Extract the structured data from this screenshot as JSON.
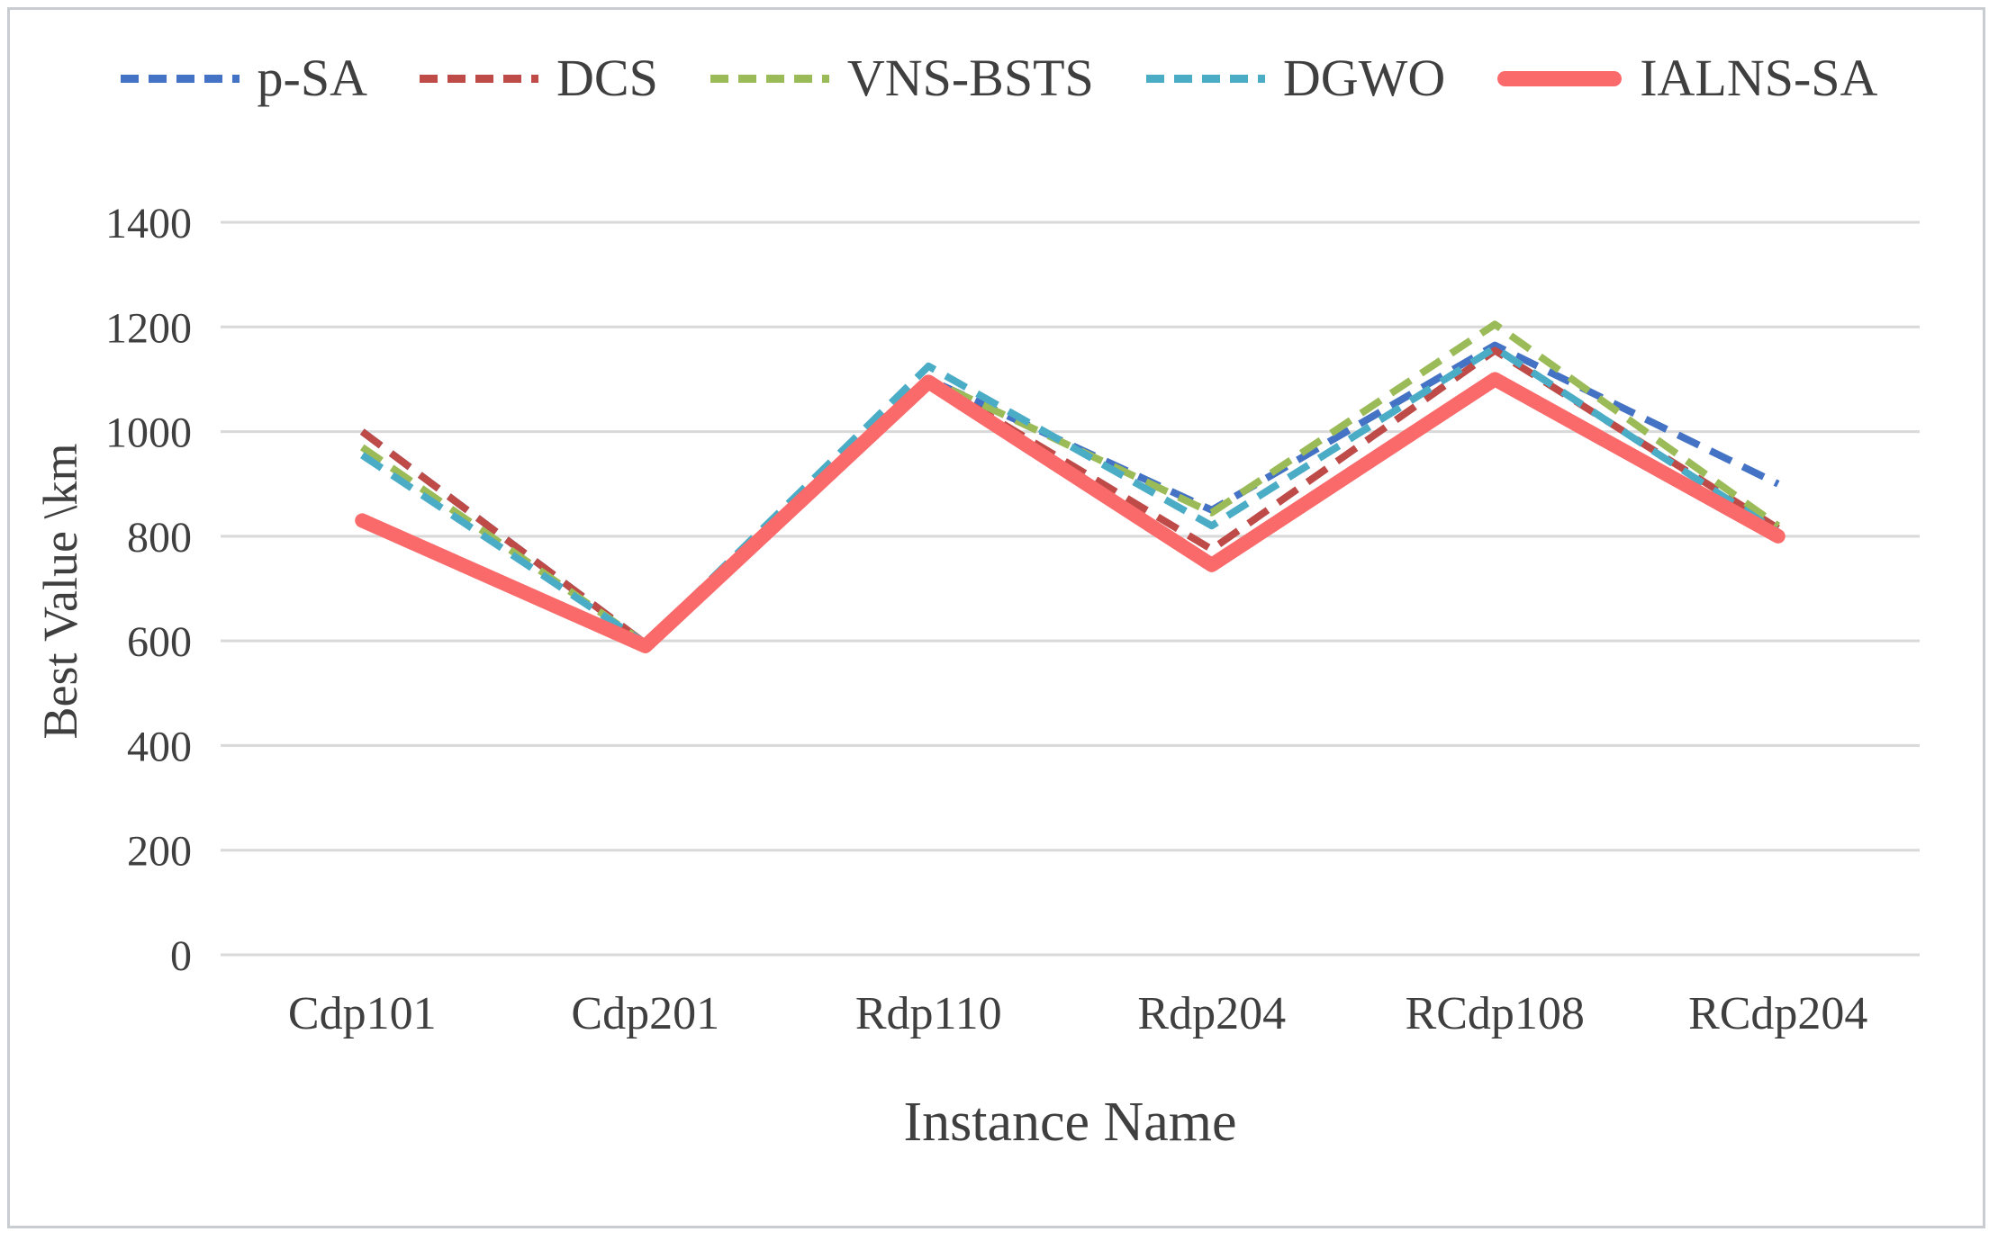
{
  "chart_data": {
    "type": "line",
    "title": "",
    "xlabel": "Instance Name",
    "ylabel": "Best Value \\km",
    "categories": [
      "Cdp101",
      "Cdp201",
      "Rdp110",
      "Rdp204",
      "RCdp108",
      "RCdp204"
    ],
    "series": [
      {
        "name": "p-SA",
        "color": "#4472C4",
        "style": "dashed",
        "values": [
          1000,
          595,
          1100,
          850,
          1165,
          900
        ]
      },
      {
        "name": "DCS",
        "color": "#BE4B48",
        "style": "dashed",
        "values": [
          1000,
          595,
          1100,
          775,
          1155,
          815
        ]
      },
      {
        "name": "VNS-BSTS",
        "color": "#9BBB59",
        "style": "dashed",
        "values": [
          970,
          595,
          1100,
          845,
          1205,
          820
        ]
      },
      {
        "name": "DGWO",
        "color": "#4BACC6",
        "style": "dashed",
        "values": [
          955,
          595,
          1125,
          820,
          1160,
          808
        ]
      },
      {
        "name": "IALNS-SA",
        "color": "#FA6A6A",
        "style": "solid",
        "values": [
          830,
          590,
          1095,
          745,
          1100,
          800
        ]
      }
    ],
    "ylim": [
      0,
      1400
    ],
    "yticks": [
      0,
      200,
      400,
      600,
      800,
      1000,
      1200,
      1400
    ],
    "grid": "horizontal",
    "gridline_color": "#d9d9d9",
    "legend_position": "top",
    "text_color": "#3f3f3f"
  }
}
